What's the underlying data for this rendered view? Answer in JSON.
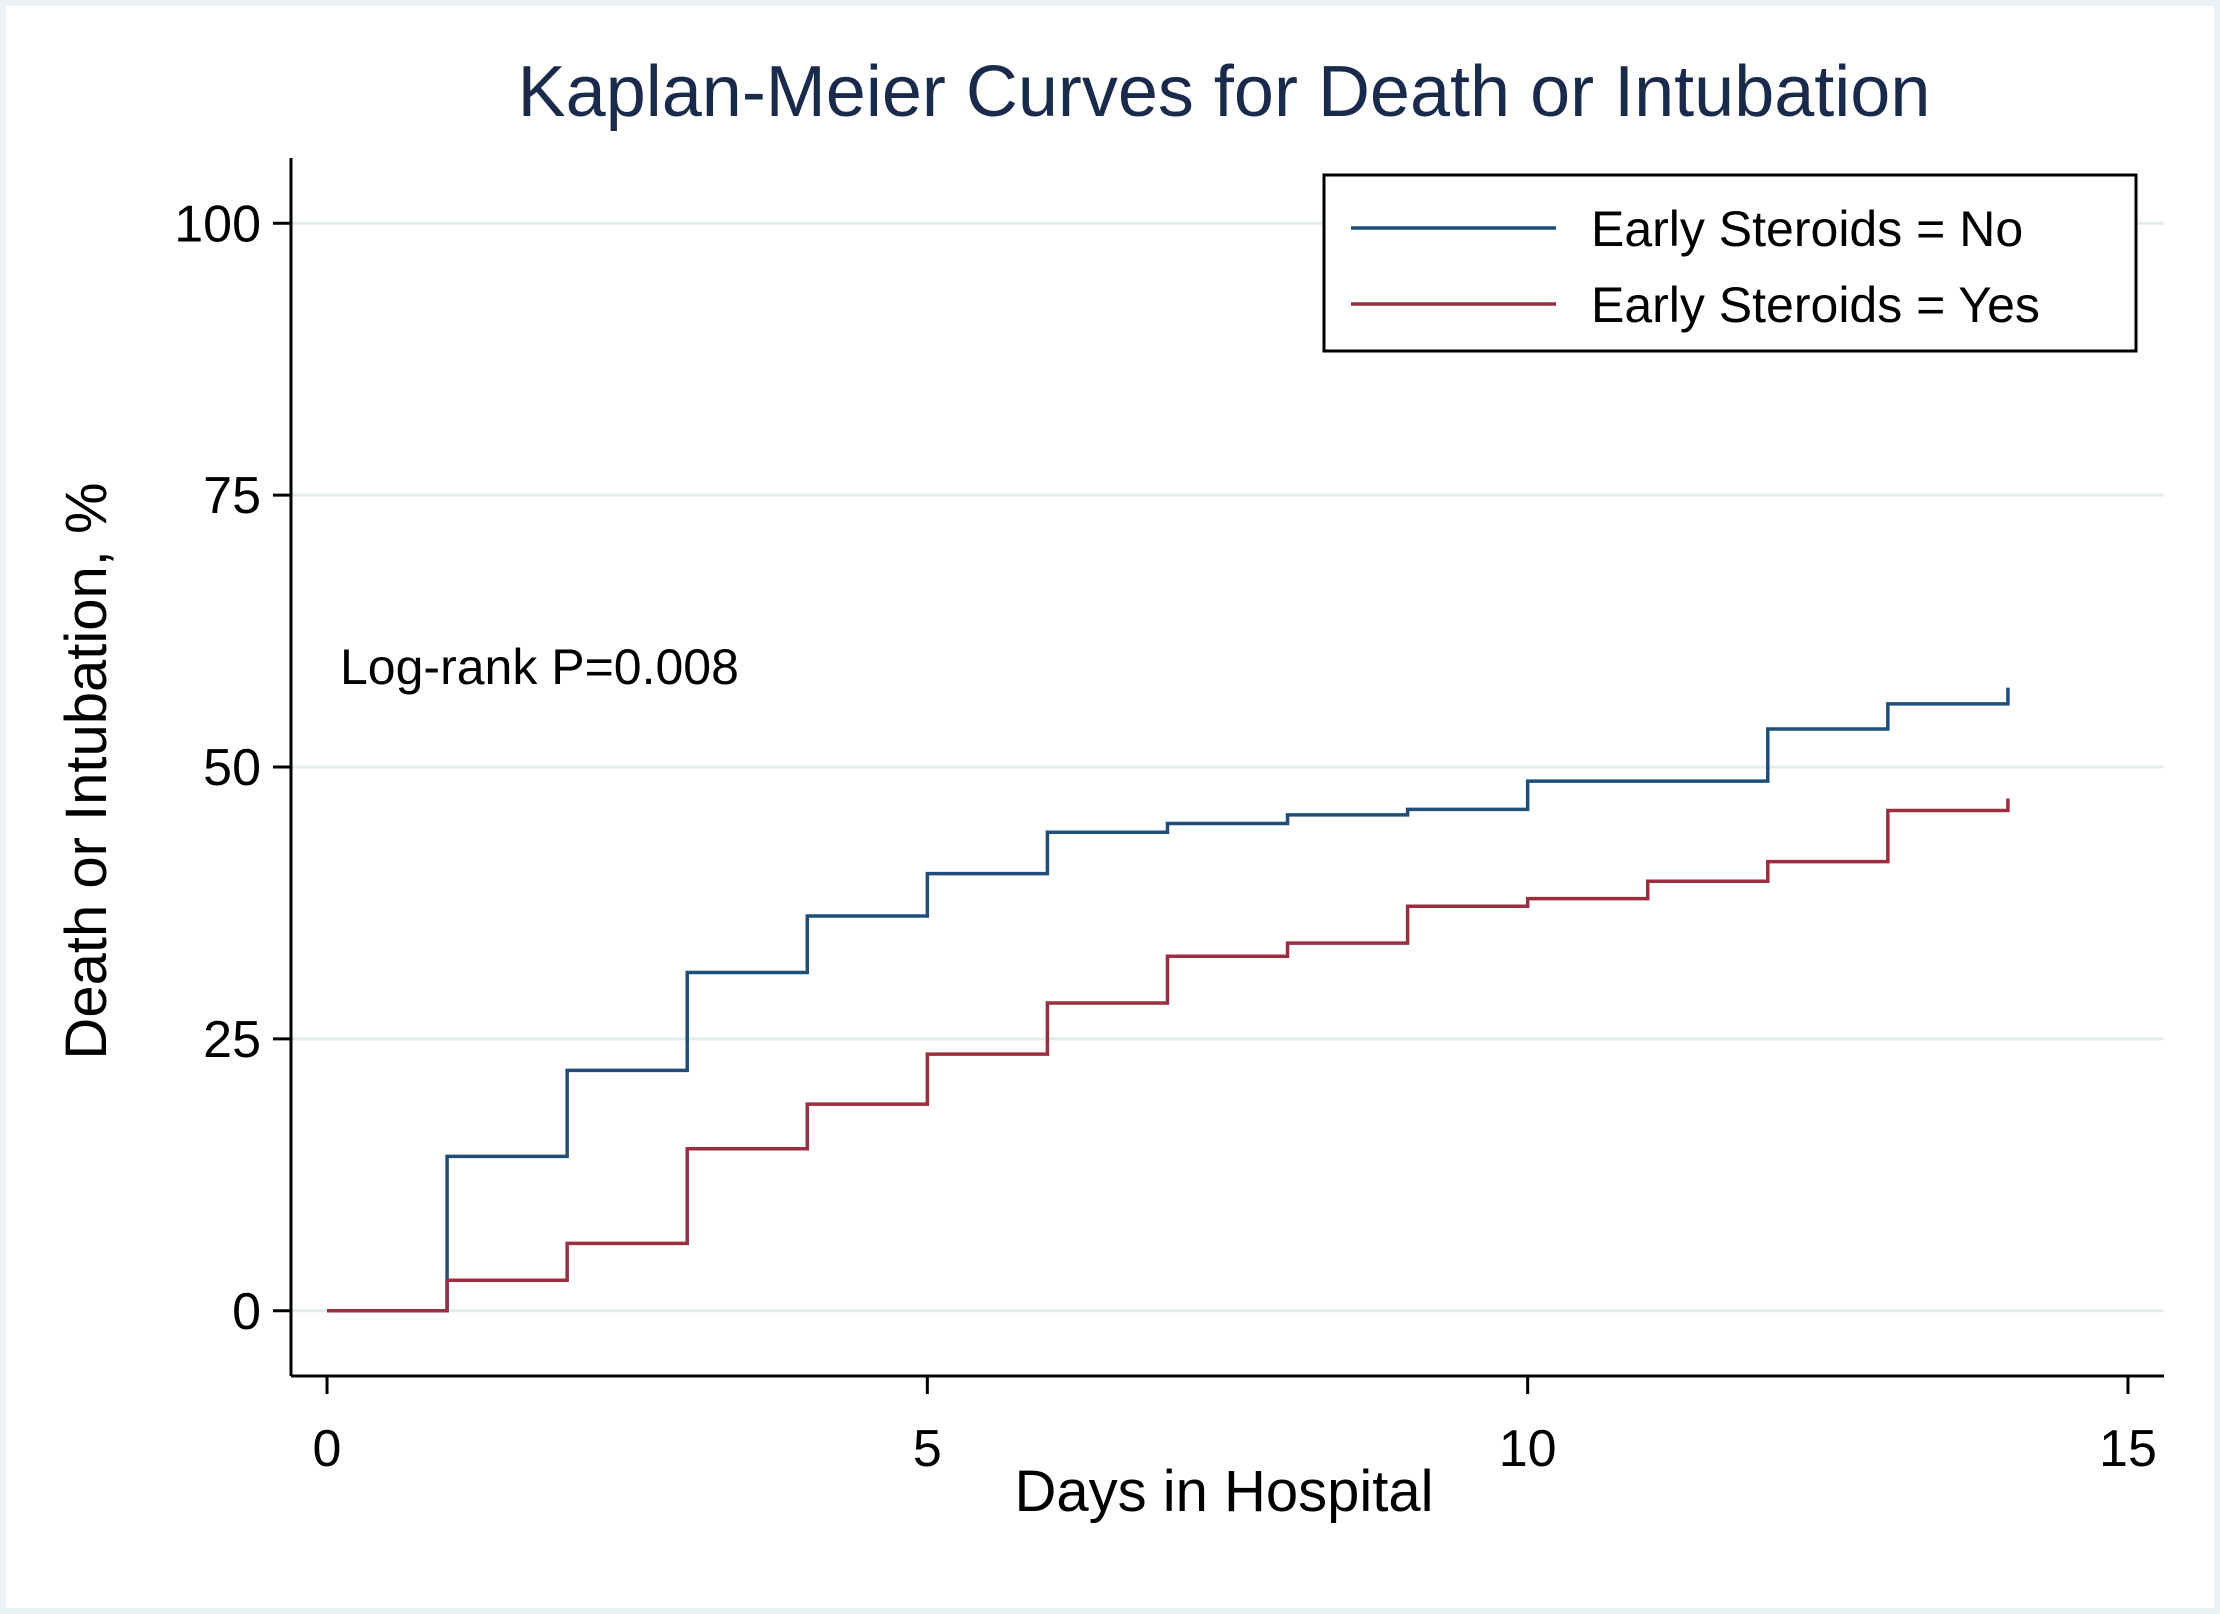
{
  "chart_data": {
    "type": "line",
    "step": true,
    "title": "Kaplan-Meier Curves for Death or Intubation",
    "xlabel": "Days in Hospital",
    "ylabel": "Death or Intubation, %",
    "xlim": [
      -0.3,
      15.3
    ],
    "ylim": [
      -6,
      106
    ],
    "xticks": [
      0,
      5,
      10,
      15
    ],
    "xtick_labels": [
      "0",
      "5",
      "10",
      "15"
    ],
    "yticks": [
      0,
      25,
      50,
      75,
      100
    ],
    "ytick_labels": [
      "0",
      "25",
      "50",
      "75",
      "100"
    ],
    "grid": "horizontal",
    "legend_position": "top-right",
    "annotation": "Log-rank P=0.008",
    "series": [
      {
        "name": "Early Steroids = No",
        "color": "#1f4e79",
        "x": [
          0,
          1,
          2,
          3,
          4,
          5,
          6,
          7,
          8,
          9,
          10,
          11,
          12,
          13,
          14
        ],
        "values": [
          0,
          14.2,
          22.1,
          31.1,
          36.3,
          40.2,
          44.0,
          44.8,
          45.6,
          46.1,
          48.7,
          48.7,
          53.5,
          55.8,
          57.3
        ]
      },
      {
        "name": "Early Steroids = Yes",
        "color": "#9b2f3f",
        "x": [
          0,
          1,
          2,
          3,
          4,
          5,
          6,
          7,
          8,
          9,
          10,
          11,
          12,
          13,
          14
        ],
        "values": [
          0,
          2.8,
          6.2,
          14.9,
          19.0,
          23.6,
          28.3,
          32.6,
          33.8,
          37.2,
          37.9,
          39.5,
          41.3,
          46.0,
          47.1
        ]
      }
    ]
  }
}
